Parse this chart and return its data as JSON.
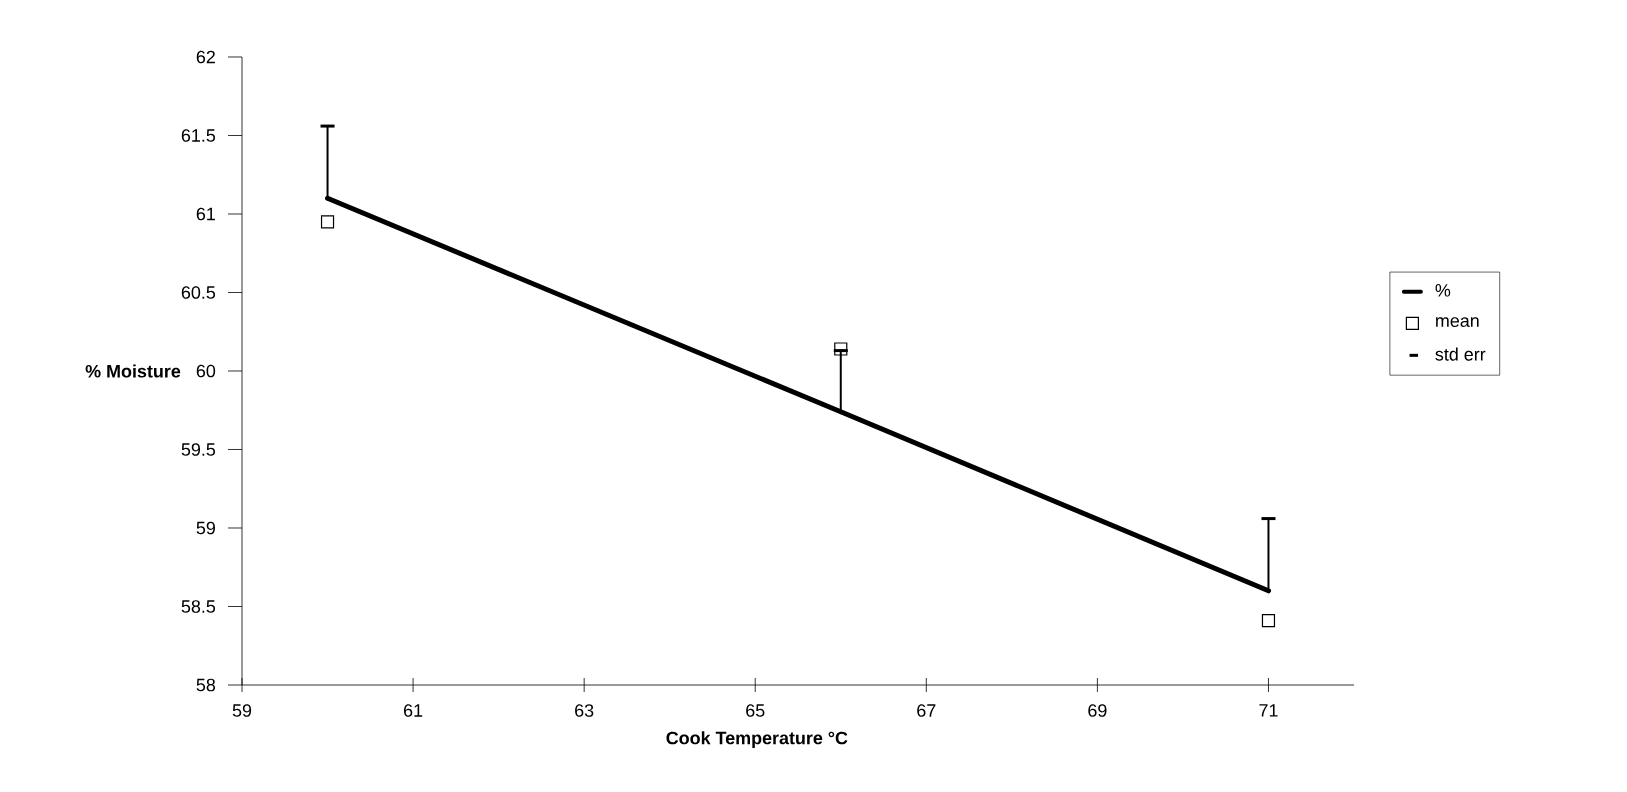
{
  "chart_data": {
    "type": "line",
    "xlabel": "Cook Temperature °C",
    "ylabel": "% Moisture",
    "x": [
      60,
      66,
      71
    ],
    "series": [
      {
        "name": "%",
        "color": "#000000",
        "values": [
          61.1,
          59.74,
          58.6
        ],
        "marker": "none"
      },
      {
        "name": "mean",
        "type": "scatter",
        "color": "#000000",
        "values": [
          60.95,
          60.14,
          58.41
        ],
        "marker": "square"
      },
      {
        "name": "std err",
        "type": "scatter",
        "color": "#000000",
        "values": [
          61.1,
          59.74,
          58.6
        ],
        "errors": [
          [
            61.1,
            61.56
          ],
          [
            59.74,
            60.13
          ],
          [
            58.6,
            59.06
          ]
        ],
        "marker": "none"
      }
    ],
    "xlim": [
      59,
      72
    ],
    "ylim": [
      58,
      62
    ],
    "xticks": [
      59,
      61,
      63,
      65,
      67,
      69,
      71
    ],
    "yticks": [
      58,
      58.5,
      59,
      59.5,
      60,
      60.5,
      61,
      61.5,
      62
    ],
    "grid": false,
    "legend": "right"
  }
}
